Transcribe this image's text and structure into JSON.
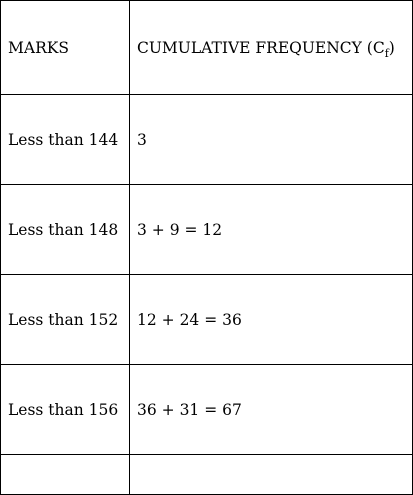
{
  "table": {
    "headers": {
      "marks": "MARKS",
      "cf_prefix": "CUMULATIVE FREQUENCY (C",
      "cf_sub": "f",
      "cf_suffix": ")"
    },
    "rows": [
      {
        "marks": "Less than 144",
        "cf": "3"
      },
      {
        "marks": "Less than 148",
        "cf": "3 + 9 = 12"
      },
      {
        "marks": "Less than 152",
        "cf": "12 + 24 = 36"
      },
      {
        "marks": "Less than 156",
        "cf": "36 + 31 = 67"
      },
      {
        "marks": "",
        "cf": ""
      }
    ]
  }
}
